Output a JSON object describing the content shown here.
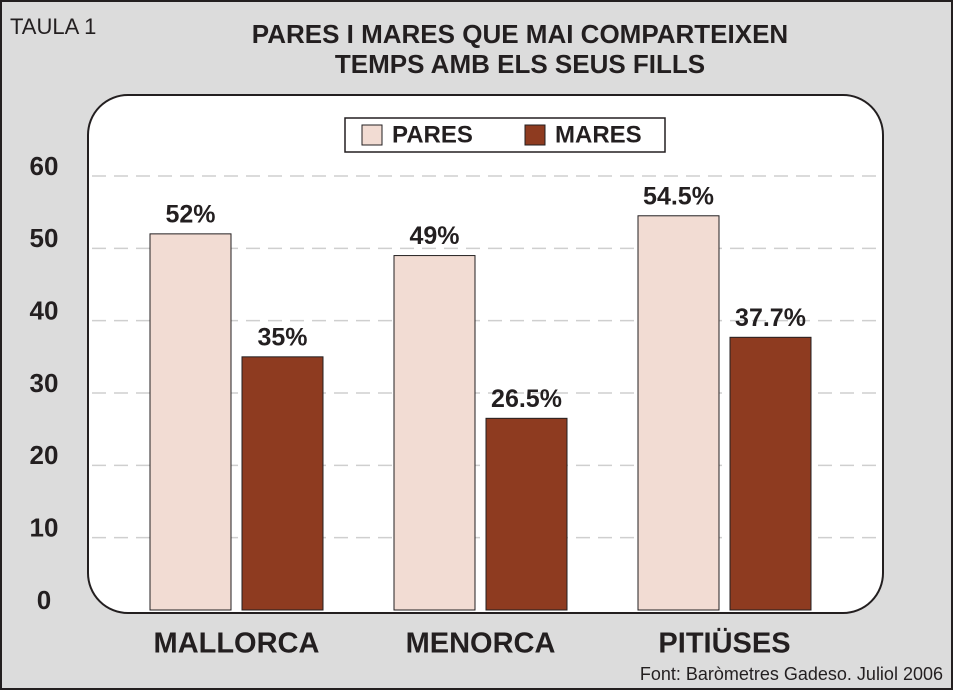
{
  "chart_data": {
    "type": "bar",
    "label": "TAULA 1",
    "title": [
      "PARES I MARES QUE MAI COMPARTEIXEN",
      "TEMPS AMB ELS SEUS FILLS"
    ],
    "categories": [
      "MALLORCA",
      "MENORCA",
      "PITIÜSES"
    ],
    "series": [
      {
        "name": "PARES",
        "color": "#f2dcd3",
        "values": [
          52,
          49,
          54.5
        ],
        "value_labels": [
          "52%",
          "49%",
          "54.5%"
        ]
      },
      {
        "name": "MARES",
        "color": "#8e3b20",
        "values": [
          35,
          26.5,
          37.7
        ],
        "value_labels": [
          "35%",
          "26.5%",
          "37.7%"
        ]
      }
    ],
    "ylim": [
      0,
      60
    ],
    "yticks": [
      0,
      10,
      20,
      30,
      40,
      50,
      60
    ],
    "grid": true,
    "legend": "top",
    "source": "Font: Baròmetres Gadeso. Juliol 2006"
  }
}
